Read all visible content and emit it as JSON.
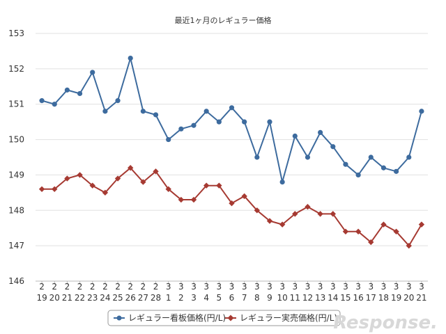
{
  "chart_data": {
    "type": "line",
    "title": "最近1ヶ月のレギュラー価格",
    "xlabel": "",
    "ylabel": "",
    "ylim": [
      146,
      153
    ],
    "yticks": [
      146,
      147,
      148,
      149,
      150,
      151,
      152,
      153
    ],
    "categories": [
      {
        "month": "2",
        "day": "19"
      },
      {
        "month": "2",
        "day": "20"
      },
      {
        "month": "2",
        "day": "21"
      },
      {
        "month": "2",
        "day": "22"
      },
      {
        "month": "2",
        "day": "23"
      },
      {
        "month": "2",
        "day": "24"
      },
      {
        "month": "2",
        "day": "25"
      },
      {
        "month": "2",
        "day": "26"
      },
      {
        "month": "2",
        "day": "27"
      },
      {
        "month": "2",
        "day": "28"
      },
      {
        "month": "3",
        "day": "1"
      },
      {
        "month": "3",
        "day": "2"
      },
      {
        "month": "3",
        "day": "3"
      },
      {
        "month": "3",
        "day": "4"
      },
      {
        "month": "3",
        "day": "5"
      },
      {
        "month": "3",
        "day": "6"
      },
      {
        "month": "3",
        "day": "7"
      },
      {
        "month": "3",
        "day": "8"
      },
      {
        "month": "3",
        "day": "9"
      },
      {
        "month": "3",
        "day": "10"
      },
      {
        "month": "3",
        "day": "11"
      },
      {
        "month": "3",
        "day": "12"
      },
      {
        "month": "3",
        "day": "13"
      },
      {
        "month": "3",
        "day": "14"
      },
      {
        "month": "3",
        "day": "15"
      },
      {
        "month": "3",
        "day": "16"
      },
      {
        "month": "3",
        "day": "17"
      },
      {
        "month": "3",
        "day": "18"
      },
      {
        "month": "3",
        "day": "19"
      },
      {
        "month": "3",
        "day": "20"
      },
      {
        "month": "3",
        "day": "21"
      }
    ],
    "series": [
      {
        "name": "レギュラー看板価格(円/L)",
        "color": "#3d6b9e",
        "marker": "circle",
        "values": [
          151.1,
          151.0,
          151.4,
          151.3,
          151.9,
          150.8,
          151.1,
          152.3,
          150.8,
          150.7,
          150.0,
          150.3,
          150.4,
          150.8,
          150.5,
          150.9,
          150.5,
          149.5,
          150.5,
          148.8,
          150.1,
          149.5,
          150.2,
          149.8,
          149.3,
          149.0,
          149.5,
          149.2,
          149.1,
          149.5,
          150.8
        ]
      },
      {
        "name": "レギュラー実売価格(円/L)",
        "color": "#a63a32",
        "marker": "diamond",
        "values": [
          148.6,
          148.6,
          148.9,
          149.0,
          148.7,
          148.5,
          148.9,
          149.2,
          148.8,
          149.1,
          148.6,
          148.3,
          148.3,
          148.7,
          148.7,
          148.2,
          148.4,
          148.0,
          147.7,
          147.6,
          147.9,
          148.1,
          147.9,
          147.9,
          147.4,
          147.4,
          147.1,
          147.6,
          147.4,
          147.0,
          147.6
        ]
      }
    ],
    "grid": true,
    "legend_position": "bottom"
  },
  "watermark": "Response."
}
